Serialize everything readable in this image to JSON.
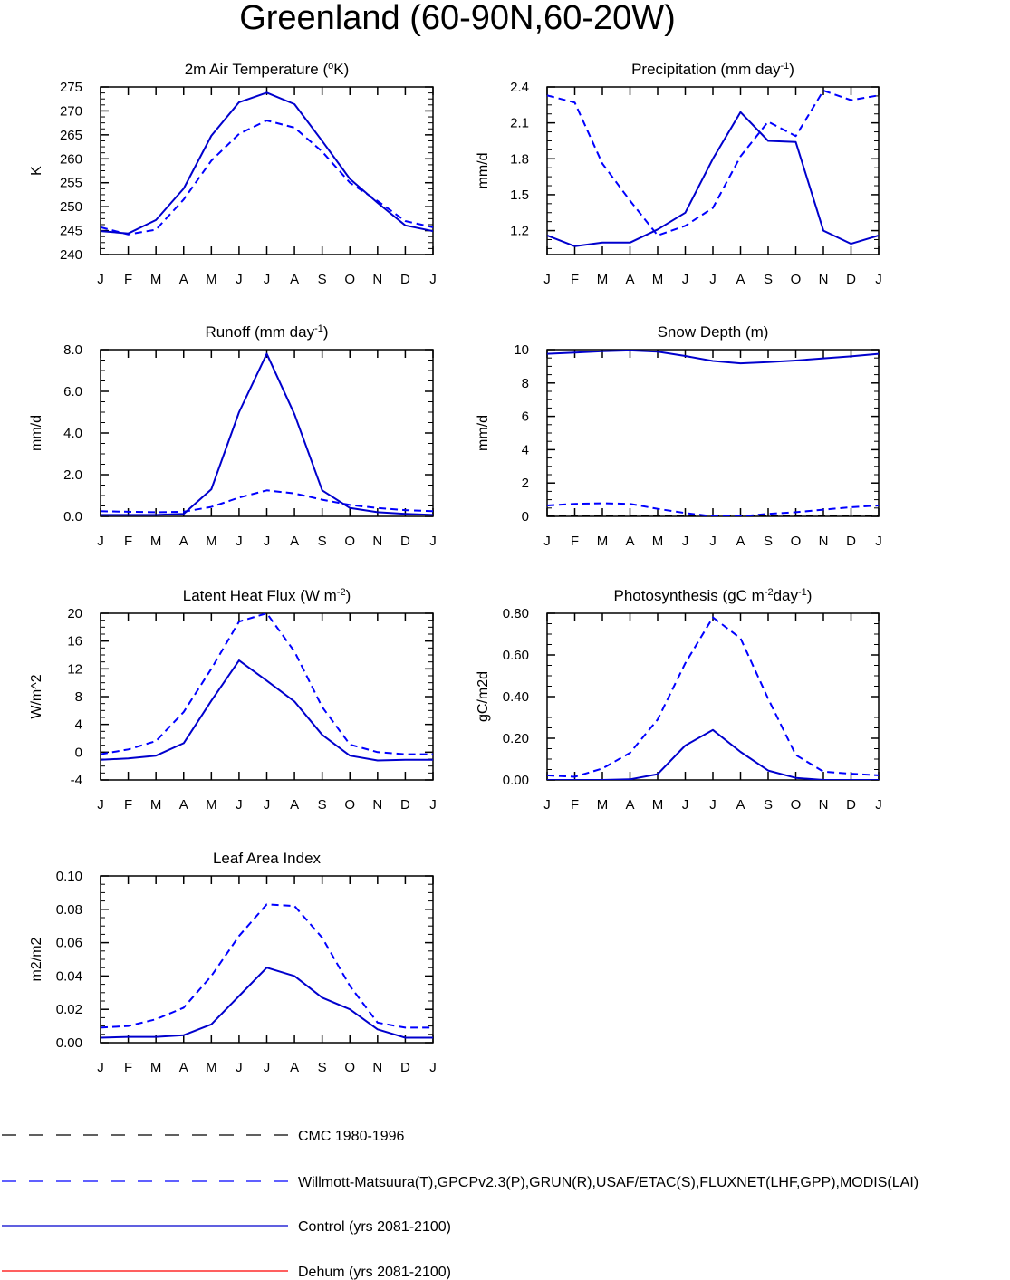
{
  "title": "Greenland (60-90N,60-20W)",
  "months": [
    "J",
    "F",
    "M",
    "A",
    "M",
    "J",
    "J",
    "A",
    "S",
    "O",
    "N",
    "D",
    "J"
  ],
  "colors": {
    "obs": "#0000ff",
    "control": "#0000cd",
    "cmc": "#000000",
    "dehum": "#ff0000"
  },
  "legend": [
    {
      "label": "CMC 1980-1996",
      "style": "dash",
      "color": "#000000"
    },
    {
      "label": "Willmott-Matsuura(T),GPCPv2.3(P),GRUN(R),USAF/ETAC(S),FLUXNET(LHF,GPP),MODIS(LAI)",
      "style": "dash",
      "color": "#0000ff"
    },
    {
      "label": "Control (yrs 2081-2100)",
      "style": "solid",
      "color": "#0000cd"
    },
    {
      "label": "Dehum (yrs 2081-2100)",
      "style": "solid",
      "color": "#ff0000"
    }
  ],
  "chart_data": [
    {
      "type": "line",
      "title": "2m Air Temperature (°K)",
      "title_parts": [
        {
          "t": "2m Air Temperature ("
        },
        {
          "t": "o",
          "sup": true
        },
        {
          "t": "K)"
        }
      ],
      "ylabel": "K",
      "ylim": [
        240,
        275
      ],
      "yticks": [
        240,
        245,
        250,
        255,
        260,
        265,
        270,
        275
      ],
      "ytick_labels": [
        "240",
        "245",
        "250",
        "255",
        "260",
        "265",
        "270",
        "275"
      ],
      "series": [
        {
          "role": "obs",
          "dashed": true,
          "values": [
            245.7,
            244.2,
            245.2,
            251.5,
            259.6,
            265.2,
            268.0,
            266.5,
            261.5,
            255.0,
            251.2,
            247.0,
            245.7
          ]
        },
        {
          "role": "control",
          "dashed": false,
          "values": [
            244.9,
            244.4,
            247.2,
            253.8,
            264.8,
            271.8,
            273.8,
            271.4,
            263.7,
            255.8,
            250.8,
            246.1,
            244.9
          ]
        }
      ]
    },
    {
      "type": "line",
      "title": "Precipitation (mm day-1)",
      "title_parts": [
        {
          "t": "Precipitation (mm day"
        },
        {
          "t": "-1",
          "sup": true
        },
        {
          "t": ")"
        }
      ],
      "ylabel": "mm/d",
      "ylim": [
        1.0,
        2.4
      ],
      "yticks": [
        1.2,
        1.5,
        1.8,
        2.1,
        2.4
      ],
      "ytick_labels": [
        "1.2",
        "1.5",
        "1.8",
        "2.1",
        "2.4"
      ],
      "series": [
        {
          "role": "obs",
          "dashed": true,
          "values": [
            2.33,
            2.27,
            1.76,
            1.45,
            1.16,
            1.24,
            1.39,
            1.82,
            2.11,
            1.99,
            2.37,
            2.29,
            2.33
          ]
        },
        {
          "role": "control",
          "dashed": false,
          "values": [
            1.16,
            1.07,
            1.1,
            1.1,
            1.21,
            1.35,
            1.8,
            2.19,
            1.95,
            1.94,
            1.2,
            1.09,
            1.16
          ]
        }
      ]
    },
    {
      "type": "line",
      "title": "Runoff (mm day-1)",
      "title_parts": [
        {
          "t": "Runoff (mm day"
        },
        {
          "t": "-1",
          "sup": true
        },
        {
          "t": ")"
        }
      ],
      "ylabel": "mm/d",
      "ylim": [
        0,
        8
      ],
      "yticks": [
        0,
        2,
        4,
        6,
        8
      ],
      "ytick_labels": [
        "0.0",
        "2.0",
        "4.0",
        "6.0",
        "8.0"
      ],
      "series": [
        {
          "role": "obs",
          "dashed": true,
          "values": [
            0.25,
            0.22,
            0.2,
            0.22,
            0.45,
            0.9,
            1.25,
            1.1,
            0.8,
            0.55,
            0.4,
            0.3,
            0.25
          ]
        },
        {
          "role": "control",
          "dashed": false,
          "values": [
            0.07,
            0.07,
            0.07,
            0.12,
            1.3,
            5.0,
            7.8,
            4.9,
            1.25,
            0.4,
            0.2,
            0.12,
            0.07
          ]
        }
      ]
    },
    {
      "type": "line",
      "title": "Snow Depth (m)",
      "title_parts": [
        {
          "t": "Snow Depth (m)"
        }
      ],
      "ylabel": "mm/d",
      "ylim": [
        0,
        10
      ],
      "yticks": [
        0,
        2,
        4,
        6,
        8,
        10
      ],
      "ytick_labels": [
        "0",
        "2",
        "4",
        "6",
        "8",
        "10"
      ],
      "series": [
        {
          "role": "cmc",
          "dashed": true,
          "values": [
            0.05,
            0.05,
            0.05,
            0.05,
            0.05,
            0.05,
            0.05,
            0.05,
            0.05,
            0.05,
            0.05,
            0.05,
            0.05
          ]
        },
        {
          "role": "obs",
          "dashed": true,
          "values": [
            0.65,
            0.75,
            0.78,
            0.75,
            0.45,
            0.2,
            0.0,
            0.0,
            0.15,
            0.25,
            0.4,
            0.55,
            0.65
          ]
        },
        {
          "role": "control",
          "dashed": false,
          "values": [
            9.75,
            9.82,
            9.9,
            9.95,
            9.88,
            9.62,
            9.32,
            9.18,
            9.25,
            9.35,
            9.48,
            9.6,
            9.75
          ]
        }
      ]
    },
    {
      "type": "line",
      "title": "Latent Heat Flux (W m-2)",
      "title_parts": [
        {
          "t": "Latent Heat Flux (W m"
        },
        {
          "t": "-2",
          "sup": true
        },
        {
          "t": ")"
        }
      ],
      "ylabel": "W/m^2",
      "ylim": [
        -4,
        20
      ],
      "yticks": [
        -4,
        0,
        4,
        8,
        12,
        16,
        20
      ],
      "ytick_labels": [
        "-4",
        "0",
        "4",
        "8",
        "12",
        "16",
        "20"
      ],
      "series": [
        {
          "role": "obs",
          "dashed": true,
          "values": [
            -0.3,
            0.4,
            1.6,
            5.8,
            12.0,
            18.8,
            20.0,
            14.5,
            6.5,
            1.1,
            0.0,
            -0.3,
            -0.3
          ]
        },
        {
          "role": "control",
          "dashed": false,
          "values": [
            -1.1,
            -0.9,
            -0.5,
            1.3,
            7.4,
            13.2,
            10.3,
            7.3,
            2.5,
            -0.5,
            -1.2,
            -1.1,
            -1.1
          ]
        }
      ]
    },
    {
      "type": "line",
      "title": "Photosynthesis (gC m-2day-1)",
      "title_parts": [
        {
          "t": "Photosynthesis (gC m"
        },
        {
          "t": "-2",
          "sup": true
        },
        {
          "t": "day"
        },
        {
          "t": "-1",
          "sup": true
        },
        {
          "t": ")"
        }
      ],
      "ylabel": "gC/m2d",
      "ylim": [
        0,
        0.8
      ],
      "yticks": [
        0,
        0.2,
        0.4,
        0.6,
        0.8
      ],
      "ytick_labels": [
        "0.00",
        "0.20",
        "0.40",
        "0.60",
        "0.80"
      ],
      "series": [
        {
          "role": "obs",
          "dashed": true,
          "values": [
            0.022,
            0.015,
            0.055,
            0.13,
            0.29,
            0.56,
            0.78,
            0.68,
            0.39,
            0.12,
            0.04,
            0.03,
            0.022
          ]
        },
        {
          "role": "control",
          "dashed": false,
          "values": [
            0.0,
            0.0,
            0.0,
            0.003,
            0.028,
            0.165,
            0.24,
            0.135,
            0.045,
            0.01,
            0.0,
            0.0,
            0.0
          ]
        }
      ]
    },
    {
      "type": "line",
      "title": "Leaf Area Index",
      "title_parts": [
        {
          "t": "Leaf Area Index"
        }
      ],
      "ylabel": "m2/m2",
      "ylim": [
        0,
        0.1
      ],
      "yticks": [
        0,
        0.02,
        0.04,
        0.06,
        0.08,
        0.1
      ],
      "ytick_labels": [
        "0.00",
        "0.02",
        "0.04",
        "0.06",
        "0.08",
        "0.10"
      ],
      "series": [
        {
          "role": "obs",
          "dashed": true,
          "values": [
            0.009,
            0.01,
            0.014,
            0.021,
            0.04,
            0.064,
            0.083,
            0.082,
            0.063,
            0.034,
            0.012,
            0.009,
            0.009
          ]
        },
        {
          "role": "control",
          "dashed": false,
          "values": [
            0.003,
            0.0035,
            0.0035,
            0.0045,
            0.011,
            0.028,
            0.045,
            0.04,
            0.027,
            0.02,
            0.008,
            0.003,
            0.003
          ]
        }
      ]
    }
  ]
}
